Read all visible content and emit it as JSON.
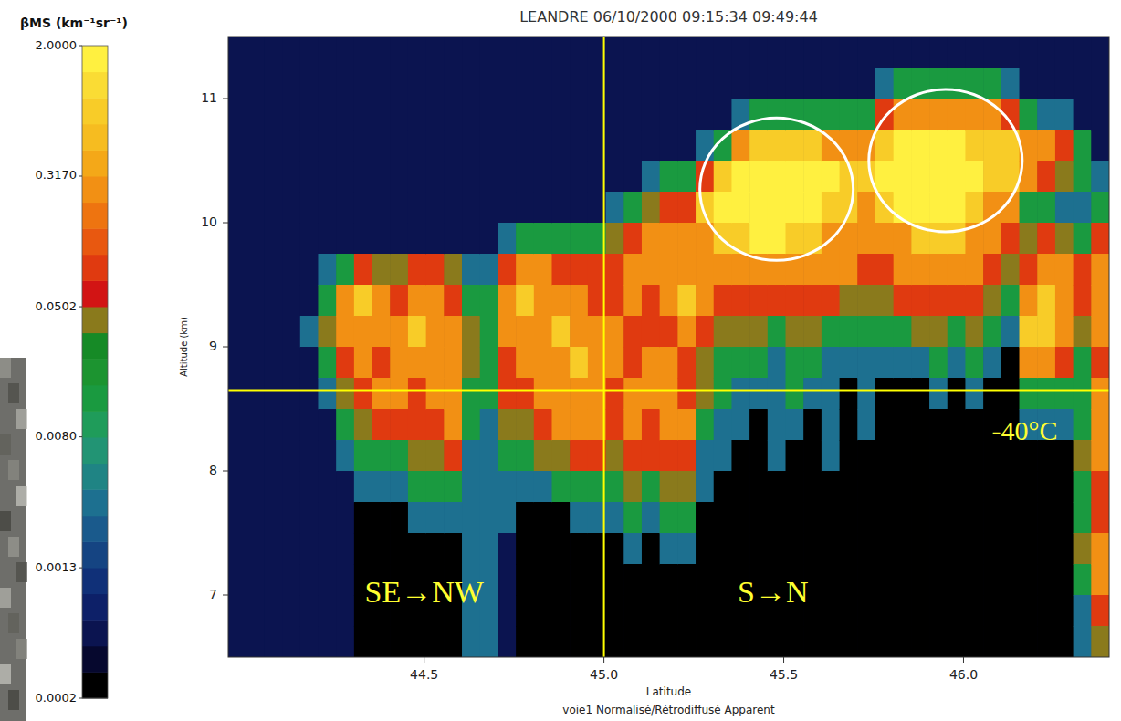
{
  "chart_data": {
    "type": "heatmap",
    "title": "LEANDRE 06/10/2000 09:15:34 09:49:44",
    "x_label": "Latitude",
    "subtitle": "voie1 Normalisé/Rétrodiffusé Apparent",
    "y_label": "Altitude (km)",
    "xlim": [
      43.955,
      46.405
    ],
    "ylim": [
      6.5,
      11.5
    ],
    "xticks": [
      {
        "value": 44.5,
        "label": "44.5"
      },
      {
        "value": 45,
        "label": "45.0"
      },
      {
        "value": 45.5,
        "label": "45.5"
      },
      {
        "value": 46,
        "label": "46.0"
      }
    ],
    "yticks": [
      7,
      8,
      9,
      10,
      11
    ],
    "x": [
      43.98,
      44.03,
      44.08,
      44.13,
      44.18,
      44.23,
      44.28,
      44.33,
      44.38,
      44.43,
      44.48,
      44.53,
      44.58,
      44.63,
      44.68,
      44.73,
      44.78,
      44.83,
      44.88,
      44.93,
      44.98,
      45.03,
      45.08,
      45.13,
      45.18,
      45.23,
      45.28,
      45.33,
      45.38,
      45.43,
      45.48,
      45.53,
      45.58,
      45.63,
      45.68,
      45.73,
      45.78,
      45.83,
      45.88,
      45.93,
      45.98,
      46.03,
      46.08,
      46.13,
      46.18,
      46.23,
      46.28,
      46.33,
      46.38
    ],
    "y": [
      11.375,
      11.125,
      10.875,
      10.625,
      10.375,
      10.125,
      9.875,
      9.625,
      9.375,
      9.125,
      8.875,
      8.625,
      8.375,
      8.125,
      7.875,
      7.625,
      7.375,
      7.125,
      6.875,
      6.625
    ],
    "values": [
      [
        0.0006,
        0.0006,
        0.0006,
        0.0006,
        0.0006,
        0.0006,
        0.0006,
        0.0006,
        0.0006,
        0.0006,
        0.0006,
        0.0006,
        0.0006,
        0.0006,
        0.0006,
        0.0006,
        0.0006,
        0.0006,
        0.0006,
        0.0006
      ],
      [
        0.0006,
        0.0006,
        0.0006,
        0.0006,
        0.0006,
        0.0006,
        0.0006,
        0.0006,
        0.0006,
        0.0006,
        0.0006,
        0.0006,
        0.0006,
        0.0006,
        0.0006,
        0.0006,
        0.0006,
        0.0006,
        0.0006,
        0.0006
      ],
      [
        0.0006,
        0.0006,
        0.0006,
        0.0006,
        0.0006,
        0.0006,
        0.0006,
        0.0006,
        0.0006,
        0.0006,
        0.0006,
        0.0006,
        0.0006,
        0.0006,
        0.0006,
        0.0006,
        0.0006,
        0.0006,
        0.0006,
        0.0006
      ],
      [
        0.0006,
        0.0006,
        0.0006,
        0.0006,
        0.0006,
        0.0006,
        0.0006,
        0.0006,
        0.0006,
        0.0006,
        0.0006,
        0.0006,
        0.0006,
        0.0006,
        0.0006,
        0.0006,
        0.0006,
        0.0006,
        0.0006,
        0.0006
      ],
      [
        0.0006,
        0.0006,
        0.0006,
        0.0006,
        0.0006,
        0.0006,
        0.0006,
        0.0006,
        0.0006,
        0.003,
        0.0006,
        0.0006,
        0.0006,
        0.0006,
        0.0006,
        0.0006,
        0.0006,
        0.0006,
        0.0006,
        0.0006
      ],
      [
        0.0006,
        0.0006,
        0.0006,
        0.0006,
        0.0006,
        0.0006,
        0.0006,
        0.003,
        0.012,
        0.04,
        0.012,
        0.003,
        0.0006,
        0.0006,
        0.0006,
        0.0006,
        0.0006,
        0.0006,
        0.0006,
        0.0006
      ],
      [
        0.0006,
        0.0006,
        0.0006,
        0.0006,
        0.0006,
        0.0006,
        0.0006,
        0.012,
        0.3,
        0.3,
        0.1,
        0.04,
        0.012,
        0.003,
        0.0006,
        0.0006,
        0.0006,
        0.0006,
        0.0006,
        0.0006
      ],
      [
        0.0006,
        0.0006,
        0.0006,
        0.0006,
        0.0006,
        0.0006,
        0.0006,
        0.1,
        0.8,
        0.3,
        0.3,
        0.1,
        0.04,
        0.012,
        0.003,
        0.0002,
        0.0002,
        0.0002,
        0.0002,
        0.0002
      ],
      [
        0.0006,
        0.0006,
        0.0006,
        0.0006,
        0.0006,
        0.0006,
        0.0006,
        0.04,
        0.3,
        0.3,
        0.1,
        0.3,
        0.1,
        0.012,
        0.003,
        0.0002,
        0.0002,
        0.0002,
        0.0002,
        0.0002
      ],
      [
        0.0006,
        0.0006,
        0.0006,
        0.0006,
        0.0006,
        0.0006,
        0.0006,
        0.04,
        0.1,
        0.3,
        0.3,
        0.3,
        0.1,
        0.012,
        0.003,
        0.0002,
        0.0002,
        0.0002,
        0.0002,
        0.0002
      ],
      [
        0.0006,
        0.0006,
        0.0006,
        0.0006,
        0.0006,
        0.0006,
        0.0006,
        0.1,
        0.3,
        0.8,
        0.3,
        0.1,
        0.1,
        0.04,
        0.012,
        0.003,
        0.0002,
        0.0002,
        0.0002,
        0.0002
      ],
      [
        0.0006,
        0.0006,
        0.0006,
        0.0006,
        0.0006,
        0.0006,
        0.0006,
        0.1,
        0.3,
        0.3,
        0.3,
        0.3,
        0.1,
        0.04,
        0.012,
        0.003,
        0.0002,
        0.0002,
        0.0002,
        0.0002
      ],
      [
        0.0006,
        0.0006,
        0.0006,
        0.0006,
        0.0006,
        0.0006,
        0.0006,
        0.04,
        0.1,
        0.3,
        0.3,
        0.3,
        0.3,
        0.1,
        0.012,
        0.003,
        0.0002,
        0.0002,
        0.0002,
        0.0002
      ],
      [
        0.0006,
        0.0006,
        0.0006,
        0.0006,
        0.0006,
        0.0006,
        0.0006,
        0.003,
        0.012,
        0.04,
        0.04,
        0.012,
        0.012,
        0.003,
        0.003,
        0.003,
        0.003,
        0.003,
        0.003,
        0.003
      ],
      [
        0.0006,
        0.0006,
        0.0006,
        0.0006,
        0.0006,
        0.0006,
        0.0006,
        0.003,
        0.012,
        0.012,
        0.012,
        0.012,
        0.003,
        0.003,
        0.003,
        0.003,
        0.003,
        0.003,
        0.003,
        0.003
      ],
      [
        0.0006,
        0.0006,
        0.0006,
        0.0006,
        0.0006,
        0.0006,
        0.003,
        0.1,
        0.3,
        0.3,
        0.1,
        0.1,
        0.04,
        0.012,
        0.003,
        0.003,
        0.0006,
        0.0006,
        0.0006,
        0.0006
      ],
      [
        0.0006,
        0.0006,
        0.0006,
        0.0006,
        0.0006,
        0.0006,
        0.012,
        0.3,
        0.8,
        0.3,
        0.3,
        0.1,
        0.04,
        0.012,
        0.003,
        0.0002,
        0.0002,
        0.0002,
        0.0002,
        0.0002
      ],
      [
        0.0006,
        0.0006,
        0.0006,
        0.0006,
        0.0006,
        0.0006,
        0.012,
        0.3,
        0.3,
        0.3,
        0.3,
        0.3,
        0.1,
        0.04,
        0.003,
        0.0002,
        0.0002,
        0.0002,
        0.0002,
        0.0002
      ],
      [
        0.0006,
        0.0006,
        0.0006,
        0.0006,
        0.0006,
        0.0006,
        0.012,
        0.1,
        0.3,
        0.8,
        0.3,
        0.3,
        0.3,
        0.04,
        0.012,
        0.0002,
        0.0002,
        0.0002,
        0.0002,
        0.0002
      ],
      [
        0.0006,
        0.0006,
        0.0006,
        0.0006,
        0.0006,
        0.0006,
        0.012,
        0.1,
        0.3,
        0.3,
        0.8,
        0.3,
        0.3,
        0.1,
        0.012,
        0.003,
        0.0002,
        0.0002,
        0.0002,
        0.0002
      ],
      [
        0.0006,
        0.0006,
        0.0006,
        0.0006,
        0.0006,
        0.0006,
        0.012,
        0.1,
        0.1,
        0.3,
        0.3,
        0.3,
        0.3,
        0.1,
        0.012,
        0.003,
        0.0002,
        0.0002,
        0.0002,
        0.0002
      ],
      [
        0.0006,
        0.0006,
        0.0006,
        0.0006,
        0.0006,
        0.003,
        0.04,
        0.1,
        0.1,
        0.3,
        0.3,
        0.1,
        0.1,
        0.04,
        0.012,
        0.003,
        0.0002,
        0.0002,
        0.0002,
        0.0002
      ],
      [
        0.0006,
        0.0006,
        0.0006,
        0.0006,
        0.0006,
        0.012,
        0.1,
        0.3,
        0.3,
        0.1,
        0.1,
        0.3,
        0.3,
        0.1,
        0.04,
        0.012,
        0.003,
        0.0002,
        0.0002,
        0.0002
      ],
      [
        0.0006,
        0.0006,
        0.0006,
        0.0006,
        0.003,
        0.04,
        0.3,
        0.3,
        0.1,
        0.1,
        0.3,
        0.3,
        0.1,
        0.1,
        0.012,
        0.003,
        0.0002,
        0.0002,
        0.0002,
        0.0002
      ],
      [
        0.0006,
        0.0006,
        0.0006,
        0.0006,
        0.012,
        0.1,
        0.3,
        0.3,
        0.3,
        0.1,
        0.3,
        0.3,
        0.3,
        0.1,
        0.04,
        0.012,
        0.003,
        0.0002,
        0.0002,
        0.0002
      ],
      [
        0.0006,
        0.0006,
        0.0006,
        0.0006,
        0.012,
        0.1,
        0.3,
        0.3,
        0.8,
        0.3,
        0.1,
        0.1,
        0.3,
        0.1,
        0.04,
        0.012,
        0.003,
        0.0002,
        0.0002,
        0.0002
      ],
      [
        0.0006,
        0.0006,
        0.0006,
        0.003,
        0.1,
        0.8,
        0.3,
        0.3,
        0.3,
        0.1,
        0.04,
        0.04,
        0.012,
        0.003,
        0.003,
        0.0002,
        0.0002,
        0.0002,
        0.0002,
        0.0002
      ],
      [
        0.0006,
        0.0006,
        0.0006,
        0.012,
        0.8,
        1.8,
        0.8,
        0.3,
        0.1,
        0.04,
        0.012,
        0.012,
        0.003,
        0.003,
        0.0002,
        0.0002,
        0.0002,
        0.0002,
        0.0002,
        0.0002
      ],
      [
        0.0006,
        0.0006,
        0.003,
        0.3,
        1.8,
        1.8,
        0.8,
        0.3,
        0.1,
        0.04,
        0.012,
        0.003,
        0.003,
        0.0002,
        0.0002,
        0.0002,
        0.0002,
        0.0002,
        0.0002,
        0.0002
      ],
      [
        0.0006,
        0.0006,
        0.012,
        0.8,
        1.8,
        1.8,
        1.8,
        0.3,
        0.1,
        0.04,
        0.012,
        0.003,
        0.0002,
        0.0002,
        0.0002,
        0.0002,
        0.0002,
        0.0002,
        0.0002,
        0.0002
      ],
      [
        0.0006,
        0.0006,
        0.012,
        0.8,
        1.8,
        1.8,
        1.8,
        0.3,
        0.1,
        0.012,
        0.003,
        0.003,
        0.003,
        0.003,
        0.0002,
        0.0002,
        0.0002,
        0.0002,
        0.0002,
        0.0002
      ],
      [
        0.0006,
        0.0006,
        0.012,
        0.8,
        1.8,
        1.8,
        0.8,
        0.3,
        0.1,
        0.04,
        0.012,
        0.012,
        0.003,
        0.0002,
        0.0002,
        0.0002,
        0.0002,
        0.0002,
        0.0002,
        0.0002
      ],
      [
        0.0006,
        0.0006,
        0.012,
        0.8,
        1.8,
        1.8,
        0.8,
        0.3,
        0.1,
        0.04,
        0.012,
        0.003,
        0.0002,
        0.0002,
        0.0002,
        0.0002,
        0.0002,
        0.0002,
        0.0002,
        0.0002
      ],
      [
        0.0006,
        0.0006,
        0.012,
        0.3,
        1.8,
        0.8,
        0.3,
        0.3,
        0.1,
        0.012,
        0.003,
        0.003,
        0.003,
        0.003,
        0.0002,
        0.0002,
        0.0002,
        0.0002,
        0.0002,
        0.0002
      ],
      [
        0.0006,
        0.0006,
        0.012,
        0.3,
        0.8,
        0.8,
        0.3,
        0.3,
        0.04,
        0.012,
        0.003,
        0.0002,
        0.0002,
        0.0002,
        0.0002,
        0.0002,
        0.0002,
        0.0002,
        0.0002,
        0.0002
      ],
      [
        0.0006,
        0.0006,
        0.012,
        0.3,
        0.8,
        0.3,
        0.3,
        0.1,
        0.04,
        0.012,
        0.003,
        0.003,
        0.003,
        0.0002,
        0.0002,
        0.0002,
        0.0002,
        0.0002,
        0.0002,
        0.0002
      ],
      [
        0.0006,
        0.003,
        0.1,
        0.8,
        1.8,
        0.8,
        0.3,
        0.1,
        0.04,
        0.012,
        0.003,
        0.0002,
        0.0002,
        0.0002,
        0.0002,
        0.0002,
        0.0002,
        0.0002,
        0.0002,
        0.0002
      ],
      [
        0.0006,
        0.012,
        0.3,
        1.8,
        1.8,
        1.8,
        0.3,
        0.3,
        0.1,
        0.012,
        0.003,
        0.0002,
        0.0002,
        0.0002,
        0.0002,
        0.0002,
        0.0002,
        0.0002,
        0.0002,
        0.0002
      ],
      [
        0.0006,
        0.012,
        0.3,
        1.8,
        1.8,
        1.8,
        0.8,
        0.3,
        0.1,
        0.04,
        0.003,
        0.0002,
        0.0002,
        0.0002,
        0.0002,
        0.0002,
        0.0002,
        0.0002,
        0.0002,
        0.0002
      ],
      [
        0.0006,
        0.012,
        0.3,
        1.8,
        1.8,
        1.8,
        0.8,
        0.3,
        0.1,
        0.04,
        0.012,
        0.003,
        0.0002,
        0.0002,
        0.0002,
        0.0002,
        0.0002,
        0.0002,
        0.0002,
        0.0002
      ],
      [
        0.0006,
        0.012,
        0.3,
        1.8,
        1.8,
        1.8,
        0.8,
        0.3,
        0.1,
        0.012,
        0.003,
        0.0002,
        0.0002,
        0.0002,
        0.0002,
        0.0002,
        0.0002,
        0.0002,
        0.0002,
        0.0002
      ],
      [
        0.0006,
        0.012,
        0.3,
        0.8,
        1.8,
        0.8,
        0.3,
        0.3,
        0.1,
        0.04,
        0.012,
        0.003,
        0.0002,
        0.0002,
        0.0002,
        0.0002,
        0.0002,
        0.0002,
        0.0002,
        0.0002
      ],
      [
        0.0006,
        0.012,
        0.3,
        0.8,
        0.8,
        0.3,
        0.3,
        0.1,
        0.04,
        0.012,
        0.003,
        0.0002,
        0.0002,
        0.0002,
        0.0002,
        0.0002,
        0.0002,
        0.0002,
        0.0002,
        0.0002
      ],
      [
        0.0006,
        0.003,
        0.1,
        0.8,
        0.8,
        0.3,
        0.1,
        0.04,
        0.012,
        0.003,
        0.0002,
        0.0002,
        0.0002,
        0.0002,
        0.0002,
        0.0002,
        0.0002,
        0.0002,
        0.0002,
        0.0002
      ],
      [
        0.0006,
        0.0006,
        0.012,
        0.3,
        0.3,
        0.012,
        0.04,
        0.1,
        0.3,
        0.8,
        0.3,
        0.012,
        0.003,
        0.0002,
        0.0002,
        0.0002,
        0.0002,
        0.0002,
        0.0002,
        0.0002
      ],
      [
        0.0006,
        0.0006,
        0.003,
        0.3,
        0.1,
        0.012,
        0.1,
        0.3,
        0.8,
        0.8,
        0.3,
        0.012,
        0.003,
        0.0002,
        0.0002,
        0.0002,
        0.0002,
        0.0002,
        0.0002,
        0.0002
      ],
      [
        0.0006,
        0.0006,
        0.003,
        0.1,
        0.04,
        0.003,
        0.04,
        0.3,
        0.3,
        0.3,
        0.1,
        0.012,
        0.003,
        0.0002,
        0.0002,
        0.0002,
        0.0002,
        0.0002,
        0.0002,
        0.0002
      ],
      [
        0.0006,
        0.0006,
        0.0006,
        0.012,
        0.012,
        0.003,
        0.012,
        0.1,
        0.1,
        0.04,
        0.012,
        0.012,
        0.012,
        0.04,
        0.012,
        0.012,
        0.04,
        0.012,
        0.003,
        0.003
      ],
      [
        0.0006,
        0.0006,
        0.0006,
        0.0006,
        0.003,
        0.012,
        0.1,
        0.3,
        0.3,
        0.3,
        0.1,
        0.3,
        0.3,
        0.3,
        0.1,
        0.1,
        0.3,
        0.3,
        0.1,
        0.04
      ]
    ],
    "colorbar": {
      "label": "βMS (km⁻¹sr⁻¹)",
      "log": true,
      "range": [
        0.0002,
        2
      ],
      "ticks": [
        {
          "value": 2,
          "label": "2.0000"
        },
        {
          "value": 0.317,
          "label": "0.3170"
        },
        {
          "value": 0.0502,
          "label": "0.0502"
        },
        {
          "value": 0.008,
          "label": "0.0080"
        },
        {
          "value": 0.00126,
          "label": "0.0013"
        },
        {
          "value": 0.0002,
          "label": "0.0002"
        }
      ]
    },
    "vlines": [
      {
        "x": 45.0
      }
    ],
    "hlines": [
      {
        "y": 8.65,
        "label": "-40°C",
        "label_x": 46.17,
        "label_y": 8.3
      }
    ],
    "annotations": [
      {
        "text": "SE→NW",
        "x": 44.5,
        "y": 7.0
      },
      {
        "text": "S→N",
        "x": 45.47,
        "y": 7.0
      }
    ],
    "circles": [
      {
        "x": 45.48,
        "y": 10.27
      },
      {
        "x": 45.95,
        "y": 10.5
      }
    ]
  }
}
